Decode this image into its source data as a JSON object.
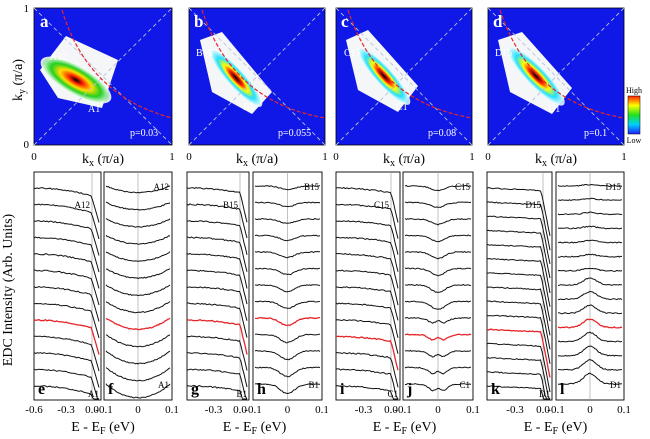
{
  "figure": {
    "top_row": {
      "ylabel": "k",
      "ylabel_sub": "y",
      "ylabel_unit": " (π/a)",
      "xlabel": "k",
      "xlabel_sub": "x",
      "xlabel_unit": " (π/a)",
      "axis_ticks": [
        "0",
        "1"
      ],
      "colorbar": {
        "high": "High",
        "low": "Low"
      },
      "panels": [
        {
          "letter": "a",
          "cut_top": "A12",
          "cut_bottom": "A1",
          "doping": "p=0.03"
        },
        {
          "letter": "b",
          "cut_top": "B15",
          "cut_bottom": "B1",
          "doping": "p=0.055"
        },
        {
          "letter": "c",
          "cut_top": "C15",
          "cut_bottom": "C1",
          "doping": "p=0.08"
        },
        {
          "letter": "d",
          "cut_top": "D15",
          "cut_bottom": "D1",
          "doping": "p=0.1"
        }
      ]
    },
    "bottom_row": {
      "ylabel": "EDC Intensity (Arb. Units)",
      "xlabel_main": "E - E",
      "xlabel_sub": "F",
      "xlabel_unit": " (eV)",
      "groups": [
        {
          "left": {
            "letter": "e",
            "top": "A12",
            "bottom": "A1",
            "ticks": [
              "-0.6",
              "-0.3",
              "0.0"
            ]
          },
          "right": {
            "letter": "f",
            "top": "A12",
            "bottom": "A1",
            "ticks": [
              "-0.1",
              "0",
              "0.1"
            ]
          }
        },
        {
          "left": {
            "letter": "g",
            "top": "B15",
            "bottom": "B1",
            "ticks": [
              "-0.3",
              "0.0"
            ]
          },
          "right": {
            "letter": "h",
            "top": "B15",
            "bottom": "B1",
            "ticks": [
              "-0.1",
              "0",
              "0.1"
            ]
          }
        },
        {
          "left": {
            "letter": "i",
            "top": "C15",
            "bottom": "C1",
            "ticks": [
              "-0.3",
              "0.0"
            ]
          },
          "right": {
            "letter": "j",
            "top": "C15",
            "bottom": "C1",
            "ticks": [
              "-0.1",
              "0",
              "0.1"
            ]
          }
        },
        {
          "left": {
            "letter": "k",
            "top": "D15",
            "bottom": "D1",
            "ticks": [
              "-0.3",
              "0.0"
            ]
          },
          "right": {
            "letter": "l",
            "top": "D15",
            "bottom": "D1",
            "ticks": [
              "-0.1",
              "0",
              "0.1"
            ]
          }
        }
      ]
    },
    "colors": {
      "map_background": "#1018e8",
      "fermi_surface": "#e8262a",
      "highlight_curve": "#e8262a",
      "curve": "#111111"
    }
  }
}
